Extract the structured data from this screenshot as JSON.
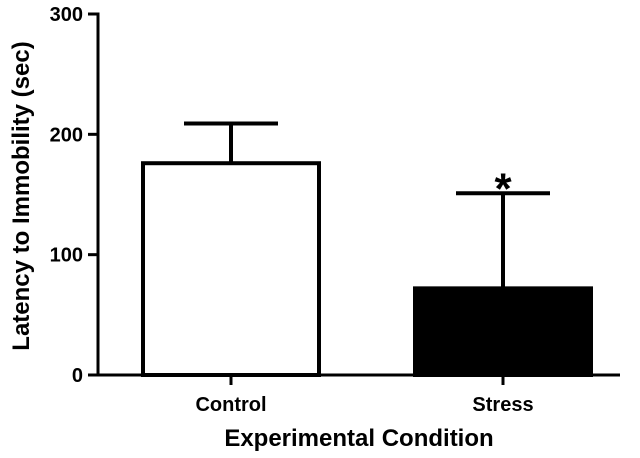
{
  "chart_data": {
    "type": "bar",
    "categories": [
      "Control",
      "Stress"
    ],
    "values": [
      176,
      72
    ],
    "error_upper": [
      209,
      151
    ],
    "bar_fills": [
      "#ffffff",
      "#000000"
    ],
    "xlabel": "Experimental Condition",
    "ylabel": "Latency to Immobility  (sec)",
    "ylim": [
      0,
      300
    ],
    "yticks": [
      "0",
      "100",
      "200",
      "300"
    ],
    "annotations": [
      {
        "category": "Stress",
        "text": "*"
      }
    ],
    "grid": false,
    "legend": "none"
  }
}
